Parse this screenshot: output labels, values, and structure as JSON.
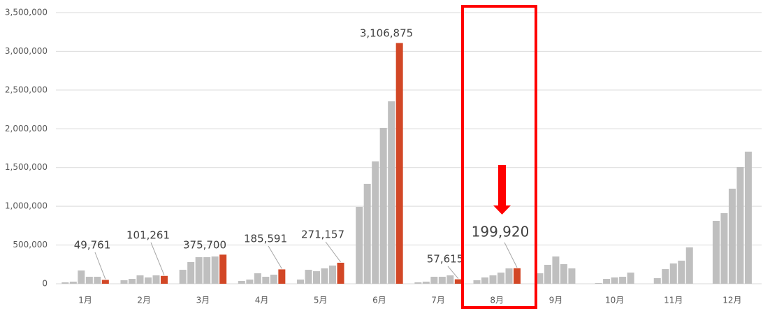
{
  "chart_data": {
    "type": "bar",
    "categories": [
      "1月",
      "2月",
      "3月",
      "4月",
      "5月",
      "6月",
      "7月",
      "8月",
      "9月",
      "10月",
      "11月",
      "12月"
    ],
    "series": [
      {
        "color": "#bfbfbf",
        "values": [
          18000,
          45000,
          180000,
          36000,
          54000,
          992000,
          18000,
          45000,
          135000,
          9000,
          72000,
          812000
        ]
      },
      {
        "color": "#bfbfbf",
        "values": [
          27000,
          63000,
          280000,
          54000,
          180000,
          1290000,
          27000,
          81000,
          244000,
          63000,
          189000,
          911000
        ]
      },
      {
        "color": "#bfbfbf",
        "values": [
          171000,
          108000,
          343000,
          135000,
          162000,
          1579000,
          90000,
          108000,
          352000,
          81000,
          262000,
          1227000
        ]
      },
      {
        "color": "#bfbfbf",
        "values": [
          90000,
          81000,
          343000,
          90000,
          198000,
          2012000,
          90000,
          144000,
          253000,
          90000,
          298000,
          1507000
        ]
      },
      {
        "color": "#bfbfbf",
        "values": [
          90000,
          108000,
          352000,
          117000,
          235000,
          2355000,
          108000,
          198000,
          198000,
          144000,
          469000,
          1705000
        ]
      },
      {
        "color": "#d24726",
        "values": [
          49761,
          101261,
          375700,
          185591,
          271157,
          3106875,
          57615,
          199920,
          null,
          null,
          null,
          null
        ],
        "value_labels": [
          "49,761",
          "101,261",
          "375,700",
          "185,591",
          "271,157",
          "3,106,875",
          "57,615",
          "199,920",
          null,
          null,
          null,
          null
        ]
      }
    ],
    "ylim": [
      0,
      3500000
    ],
    "yticks": [
      0,
      {
        "value": 500000,
        "label": "500,000"
      },
      {
        "value": 1000000,
        "label": "1,000,000"
      },
      {
        "value": 1500000,
        "label": "1,500,000"
      },
      {
        "value": 2000000,
        "label": "2,000,000"
      },
      {
        "value": 2500000,
        "label": "2,500,000"
      },
      {
        "value": 3000000,
        "label": "3,000,000"
      },
      {
        "value": 3500000,
        "label": "3,500,000"
      }
    ],
    "grid": true
  }
}
